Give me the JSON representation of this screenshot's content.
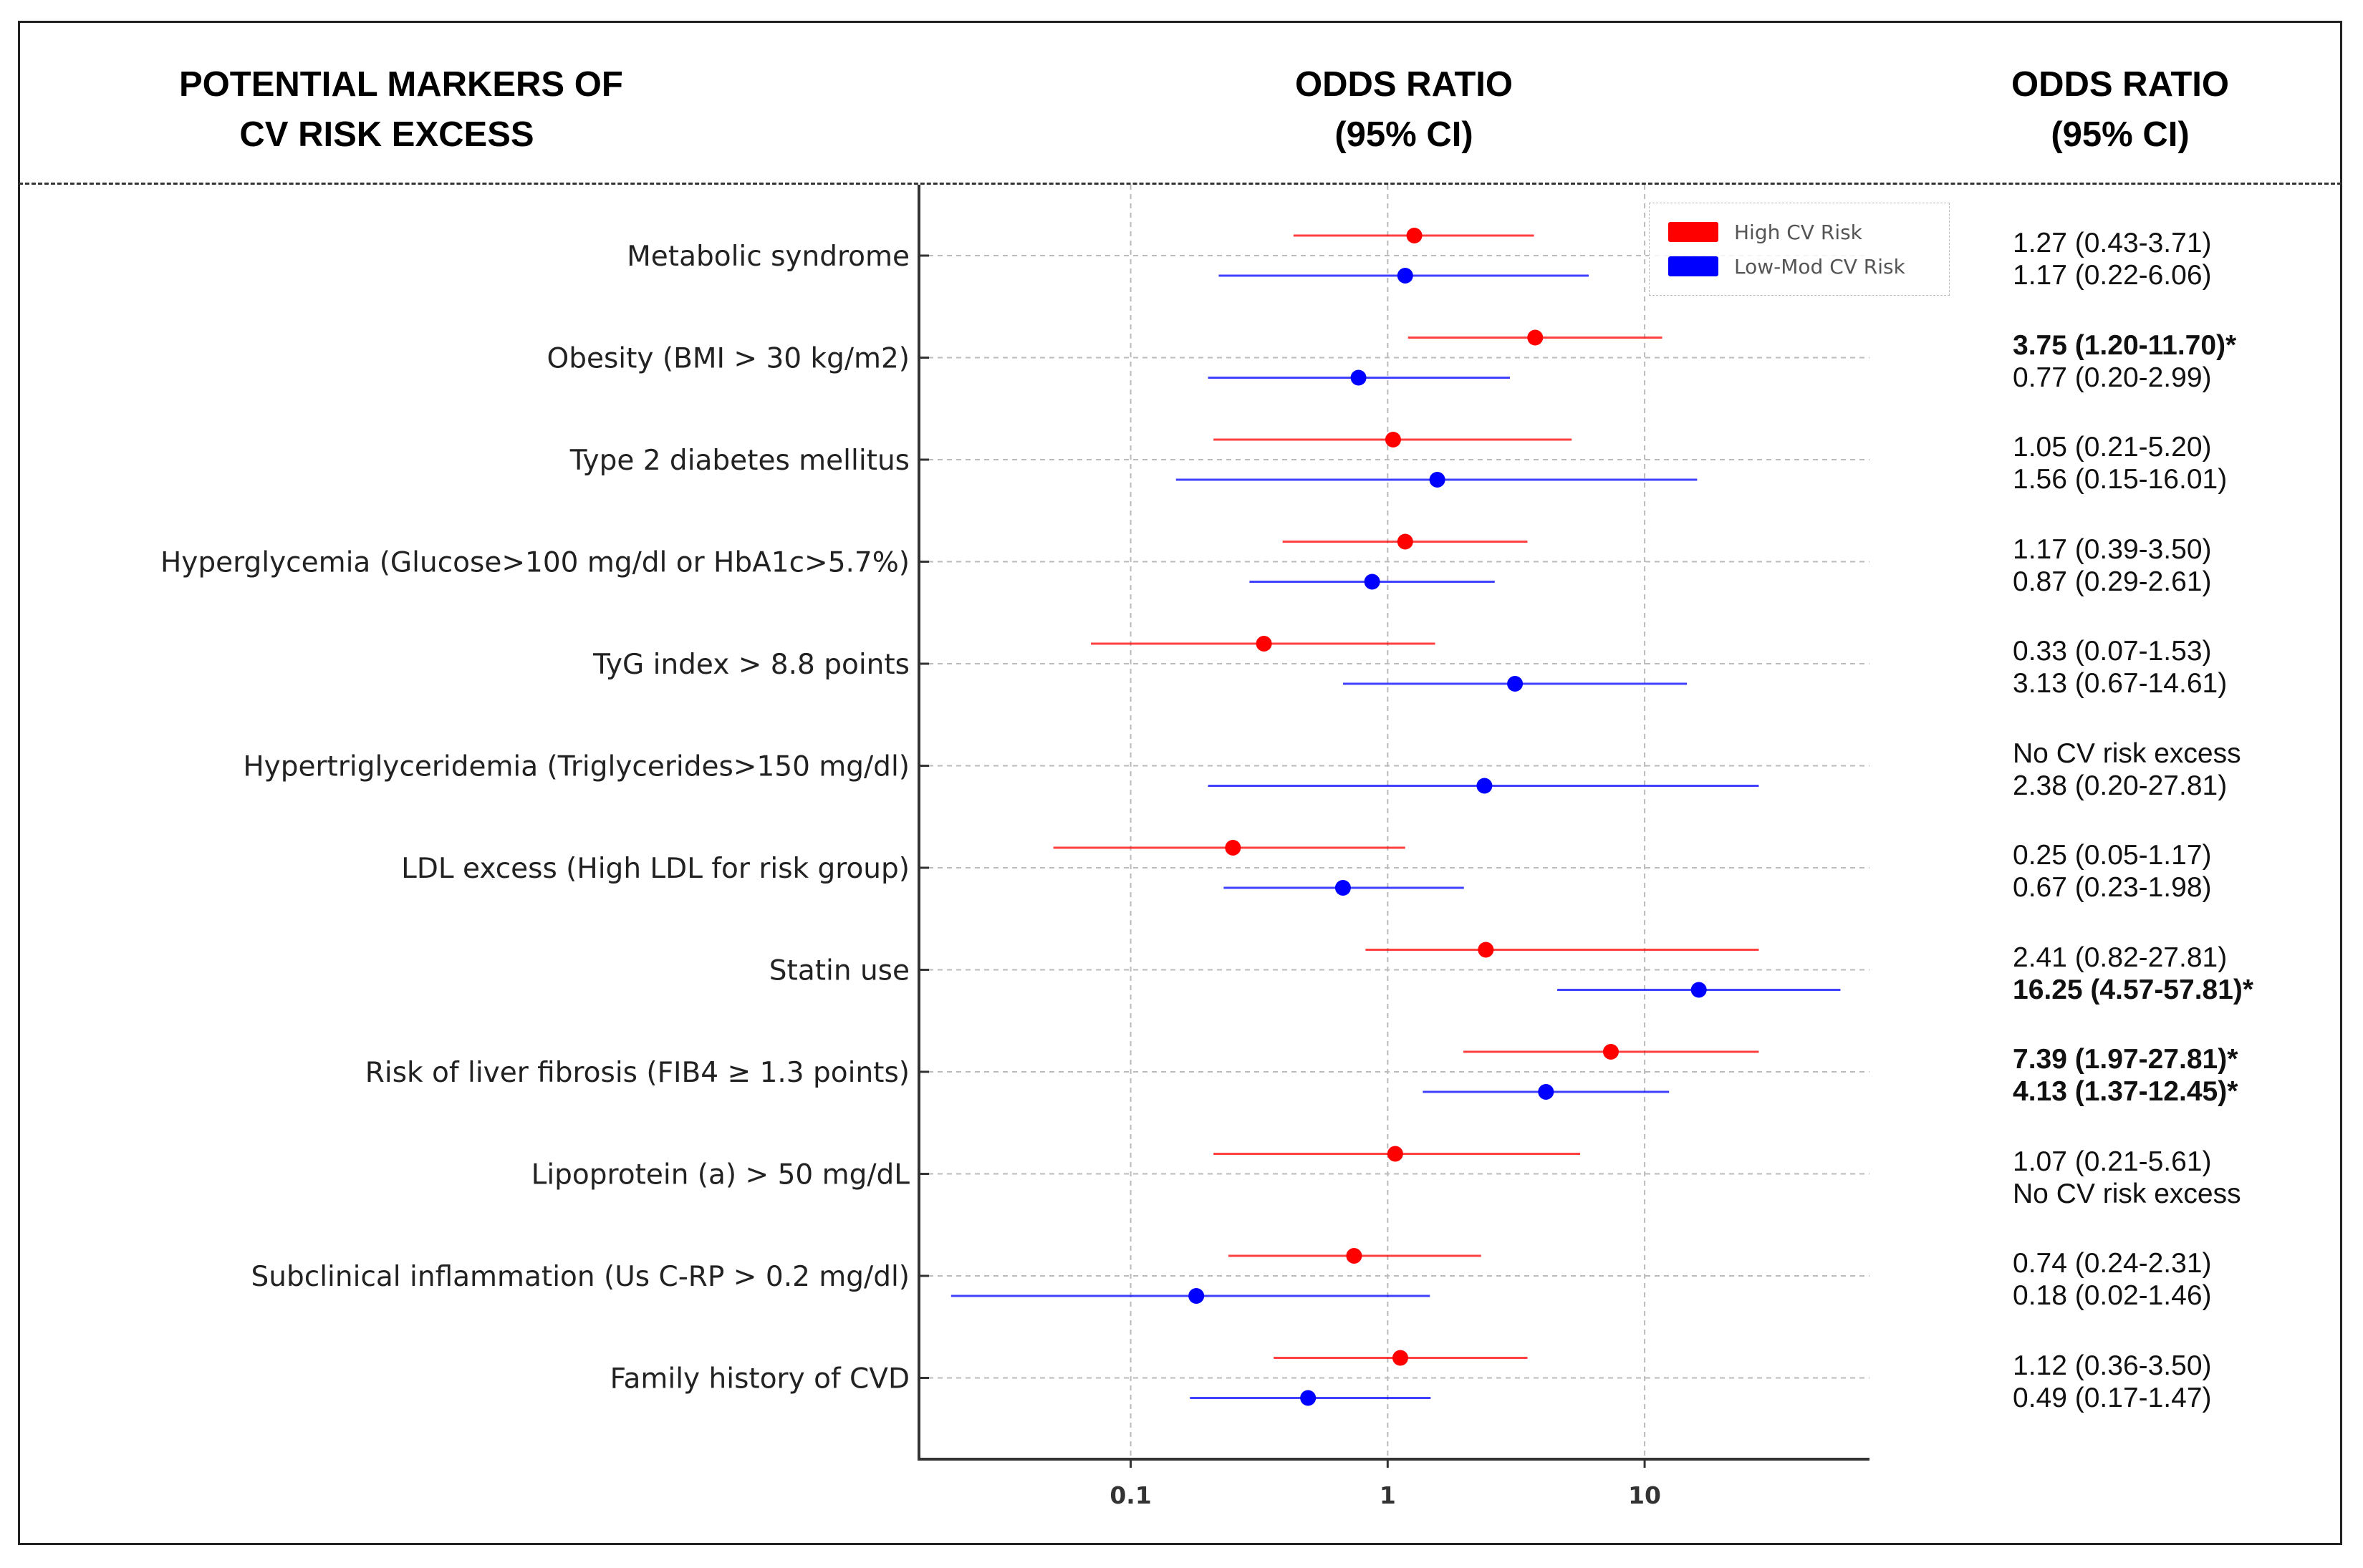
{
  "headers": {
    "markers": [
      "POTENTIAL MARKERS OF",
      "CV RISK EXCESS"
    ],
    "or_center": [
      "ODDS RATIO",
      "(95% CI)"
    ],
    "or_right": [
      "ODDS RATIO",
      "(95% CI)"
    ]
  },
  "legend": {
    "high": {
      "label": "High CV Risk",
      "color": "#ff0000"
    },
    "low": {
      "label": "Low-Mod CV Risk",
      "color": "#0000ff"
    }
  },
  "colors": {
    "high": "#ff0000",
    "low": "#0000ff",
    "axis": "#333333",
    "grid": "#bbbbbb"
  },
  "chart_data": {
    "type": "forest",
    "xscale": "log",
    "xlim": [
      0.015,
      75
    ],
    "xticks": [
      0.1,
      1,
      10
    ],
    "xtick_labels": [
      "0.1",
      "1",
      "10"
    ],
    "categories": [
      "Metabolic syndrome",
      "Obesity (BMI > 30 kg/m2)",
      "Type 2 diabetes mellitus",
      "Hyperglycemia (Glucose>100 mg/dl or HbA1c>5.7%)",
      "TyG index > 8.8 points",
      "Hypertriglyceridemia (Triglycerides>150 mg/dl)",
      "LDL excess (High LDL for risk group)",
      "Statin use",
      "Risk of liver fibrosis (FIB4 ≥ 1.3 points)",
      "Lipoprotein (a) > 50 mg/dL",
      "Subclinical inflammation (Us C-RP > 0.2 mg/dl)",
      "Family history of CVD"
    ],
    "series": [
      {
        "name": "High CV Risk",
        "color": "#ff0000",
        "points": [
          {
            "or": 1.27,
            "lo": 0.43,
            "hi": 3.71,
            "text": "1.27 (0.43-3.71)",
            "bold": false
          },
          {
            "or": 3.75,
            "lo": 1.2,
            "hi": 11.7,
            "text": "3.75 (1.20-11.70)*",
            "bold": true
          },
          {
            "or": 1.05,
            "lo": 0.21,
            "hi": 5.2,
            "text": "1.05 (0.21-5.20)",
            "bold": false
          },
          {
            "or": 1.17,
            "lo": 0.39,
            "hi": 3.5,
            "text": "1.17 (0.39-3.50)",
            "bold": false
          },
          {
            "or": 0.33,
            "lo": 0.07,
            "hi": 1.53,
            "text": "0.33 (0.07-1.53)",
            "bold": false
          },
          {
            "or": null,
            "lo": null,
            "hi": null,
            "text": "No CV risk excess",
            "bold": false
          },
          {
            "or": 0.25,
            "lo": 0.05,
            "hi": 1.17,
            "text": "0.25 (0.05-1.17)",
            "bold": false
          },
          {
            "or": 2.41,
            "lo": 0.82,
            "hi": 27.81,
            "text": "2.41 (0.82-27.81)",
            "bold": false
          },
          {
            "or": 7.39,
            "lo": 1.97,
            "hi": 27.81,
            "text": "7.39 (1.97-27.81)*",
            "bold": true
          },
          {
            "or": 1.07,
            "lo": 0.21,
            "hi": 5.61,
            "text": "1.07 (0.21-5.61)",
            "bold": false
          },
          {
            "or": 0.74,
            "lo": 0.24,
            "hi": 2.31,
            "text": "0.74 (0.24-2.31)",
            "bold": false
          },
          {
            "or": 1.12,
            "lo": 0.36,
            "hi": 3.5,
            "text": "1.12 (0.36-3.50)",
            "bold": false
          }
        ]
      },
      {
        "name": "Low-Mod CV Risk",
        "color": "#0000ff",
        "points": [
          {
            "or": 1.17,
            "lo": 0.22,
            "hi": 6.06,
            "text": "1.17 (0.22-6.06)",
            "bold": false
          },
          {
            "or": 0.77,
            "lo": 0.2,
            "hi": 2.99,
            "text": "0.77 (0.20-2.99)",
            "bold": false
          },
          {
            "or": 1.56,
            "lo": 0.15,
            "hi": 16.01,
            "text": "1.56 (0.15-16.01)",
            "bold": false
          },
          {
            "or": 0.87,
            "lo": 0.29,
            "hi": 2.61,
            "text": "0.87 (0.29-2.61)",
            "bold": false
          },
          {
            "or": 3.13,
            "lo": 0.67,
            "hi": 14.61,
            "text": "3.13 (0.67-14.61)",
            "bold": false
          },
          {
            "or": 2.38,
            "lo": 0.2,
            "hi": 27.81,
            "text": "2.38 (0.20-27.81)",
            "bold": false
          },
          {
            "or": 0.67,
            "lo": 0.23,
            "hi": 1.98,
            "text": "0.67 (0.23-1.98)",
            "bold": false
          },
          {
            "or": 16.25,
            "lo": 4.57,
            "hi": 57.81,
            "text": "16.25 (4.57-57.81)*",
            "bold": true
          },
          {
            "or": 4.13,
            "lo": 1.37,
            "hi": 12.45,
            "text": "4.13 (1.37-12.45)*",
            "bold": true
          },
          {
            "or": null,
            "lo": null,
            "hi": null,
            "text": "No CV risk excess",
            "bold": false
          },
          {
            "or": 0.18,
            "lo": 0.02,
            "hi": 1.46,
            "text": "0.18 (0.02-1.46)",
            "bold": false
          },
          {
            "or": 0.49,
            "lo": 0.17,
            "hi": 1.47,
            "text": "0.49 (0.17-1.47)",
            "bold": false
          }
        ]
      }
    ]
  }
}
